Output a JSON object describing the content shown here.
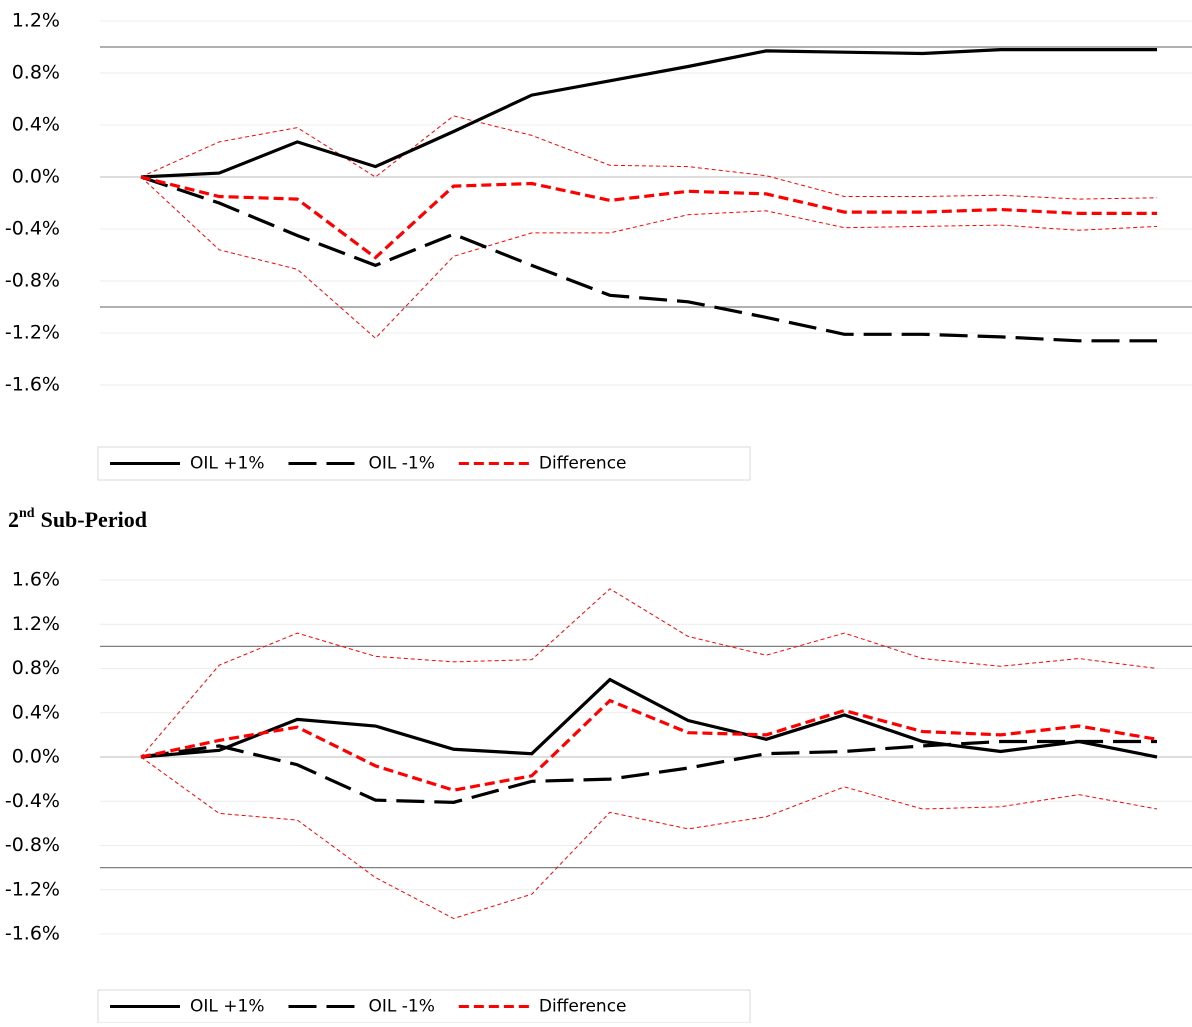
{
  "chart_data": [
    {
      "type": "line",
      "categories": [
        null,
        null,
        null,
        null,
        null,
        null,
        null,
        null,
        null,
        null,
        null,
        null,
        null,
        null
      ],
      "ylim": [
        -1.6,
        1.2
      ],
      "yticks": [
        {
          "value": 1.2,
          "label": "1.2%"
        },
        {
          "value": 0.8,
          "label": "0.8%"
        },
        {
          "value": 0.4,
          "label": "0.4%"
        },
        {
          "value": 0,
          "label": "0.0%"
        },
        {
          "value": -0.4,
          "label": "-0.4%"
        },
        {
          "value": -0.8,
          "label": "-0.8%"
        },
        {
          "value": -1.2,
          "label": "-1.2%"
        },
        {
          "value": -1.6,
          "label": "-1.6%"
        }
      ],
      "grid": true,
      "reference_lines": [
        1.0,
        -1.0
      ],
      "series": [
        {
          "name": "OIL +1%",
          "color": "#000000",
          "style": "solid",
          "values": [
            0,
            0.03,
            0.27,
            0.08,
            0.35,
            0.63,
            0.74,
            0.85,
            0.97,
            0.96,
            0.95,
            0.98,
            0.98,
            0.98
          ]
        },
        {
          "name": "OIL -1%",
          "color": "#000000",
          "style": "long-dash",
          "values": [
            0,
            -0.2,
            -0.45,
            -0.68,
            -0.44,
            -0.68,
            -0.91,
            -0.96,
            -1.08,
            -1.21,
            -1.21,
            -1.23,
            -1.26,
            -1.26
          ]
        },
        {
          "name": "Difference",
          "color": "#ff0000",
          "style": "dash",
          "values": [
            0,
            -0.15,
            -0.17,
            -0.62,
            -0.07,
            -0.05,
            -0.18,
            -0.11,
            -0.13,
            -0.27,
            -0.27,
            -0.25,
            -0.28,
            -0.28
          ]
        }
      ],
      "bands": [
        {
          "color": "#ff0000",
          "upper": [
            0,
            0.27,
            0.38,
            0,
            0.47,
            0.32,
            0.09,
            0.08,
            0.01,
            -0.15,
            -0.15,
            -0.14,
            -0.17,
            -0.16
          ],
          "lower": [
            0,
            -0.56,
            -0.71,
            -1.24,
            -0.61,
            -0.43,
            -0.43,
            -0.29,
            -0.26,
            -0.39,
            -0.38,
            -0.37,
            -0.41,
            -0.38
          ]
        }
      ]
    },
    {
      "type": "line",
      "categories": [
        null,
        null,
        null,
        null,
        null,
        null,
        null,
        null,
        null,
        null,
        null,
        null,
        null,
        null
      ],
      "ylim": [
        -1.6,
        1.6
      ],
      "yticks": [
        {
          "value": 1.6,
          "label": "1.6%"
        },
        {
          "value": 1.2,
          "label": "1.2%"
        },
        {
          "value": 0.8,
          "label": "0.8%"
        },
        {
          "value": 0.4,
          "label": "0.4%"
        },
        {
          "value": 0,
          "label": "0.0%"
        },
        {
          "value": -0.4,
          "label": "-0.4%"
        },
        {
          "value": -0.8,
          "label": "-0.8%"
        },
        {
          "value": -1.2,
          "label": "-1.2%"
        },
        {
          "value": -1.6,
          "label": "-1.6%"
        }
      ],
      "grid": true,
      "reference_lines": [
        1.0,
        -1.0
      ],
      "series": [
        {
          "name": "OIL +1%",
          "color": "#000000",
          "style": "solid",
          "values": [
            0,
            0.06,
            0.34,
            0.28,
            0.07,
            0.03,
            0.7,
            0.33,
            0.16,
            0.38,
            0.14,
            0.05,
            0.14,
            0
          ]
        },
        {
          "name": "OIL -1%",
          "color": "#000000",
          "style": "long-dash",
          "values": [
            0,
            0.1,
            -0.07,
            -0.39,
            -0.41,
            -0.22,
            -0.2,
            -0.1,
            0.03,
            0.05,
            0.1,
            0.14,
            0.14,
            0.14
          ]
        },
        {
          "name": "Difference",
          "color": "#ff0000",
          "style": "dash",
          "values": [
            0,
            0.15,
            0.27,
            -0.08,
            -0.3,
            -0.17,
            0.51,
            0.22,
            0.2,
            0.42,
            0.23,
            0.2,
            0.28,
            0.16
          ]
        }
      ],
      "bands": [
        {
          "color": "#ff0000",
          "upper": [
            0,
            0.83,
            1.12,
            0.91,
            0.86,
            0.88,
            1.52,
            1.09,
            0.92,
            1.12,
            0.89,
            0.82,
            0.89,
            0.8
          ],
          "lower": [
            0,
            -0.51,
            -0.57,
            -1.09,
            -1.46,
            -1.24,
            -0.5,
            -0.65,
            -0.54,
            -0.27,
            -0.47,
            -0.45,
            -0.34,
            -0.47
          ]
        }
      ]
    }
  ],
  "heading": {
    "number": "2",
    "suffix": "nd",
    "text": "Sub-Period"
  }
}
